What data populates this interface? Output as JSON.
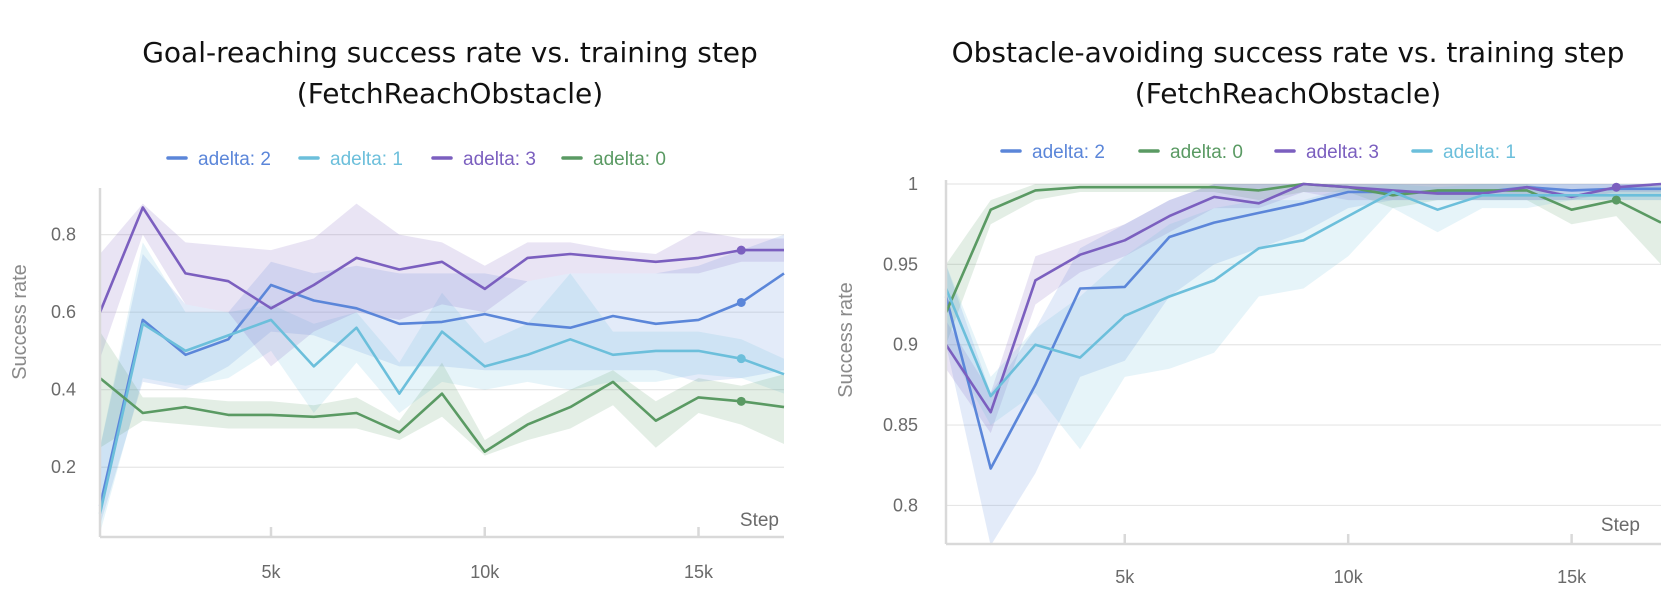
{
  "chart_data": [
    {
      "type": "line",
      "title": "Goal-reaching success rate vs. training step",
      "subtitle": "(FetchReachObstacle)",
      "xlabel": "Step",
      "ylabel": "Success rate",
      "xlim": [
        1000,
        17000
      ],
      "ylim": [
        0.02,
        0.91
      ],
      "xticks": [
        5000,
        10000,
        15000
      ],
      "xtick_labels": [
        "5k",
        "10k",
        "15k"
      ],
      "yticks": [
        0.2,
        0.4,
        0.6,
        0.8
      ],
      "ytick_labels": [
        "0.2",
        "0.4",
        "0.6",
        "0.8"
      ],
      "grid": true,
      "legend_position": "top",
      "x": [
        1000,
        2000,
        3000,
        4000,
        5000,
        6000,
        7000,
        8000,
        9000,
        10000,
        11000,
        12000,
        13000,
        14000,
        15000,
        16000,
        17000
      ],
      "series": [
        {
          "name": "adelta: 2",
          "color": "#5b86d9",
          "values": [
            0.1,
            0.58,
            0.49,
            0.53,
            0.67,
            0.63,
            0.61,
            0.57,
            0.575,
            0.595,
            0.57,
            0.56,
            0.59,
            0.57,
            0.58,
            0.625,
            0.7
          ],
          "lower": [
            0.05,
            0.42,
            0.4,
            0.46,
            0.55,
            0.54,
            0.5,
            0.46,
            0.46,
            0.45,
            0.45,
            0.45,
            0.45,
            0.45,
            0.42,
            0.43,
            0.45
          ],
          "upper": [
            0.25,
            0.75,
            0.62,
            0.6,
            0.73,
            0.7,
            0.72,
            0.7,
            0.7,
            0.7,
            0.68,
            0.7,
            0.7,
            0.7,
            0.72,
            0.76,
            0.8
          ],
          "end_marker_x": 16000
        },
        {
          "name": "adelta: 1",
          "color": "#6cbfdb",
          "values": [
            0.08,
            0.57,
            0.5,
            0.54,
            0.58,
            0.46,
            0.56,
            0.39,
            0.55,
            0.46,
            0.49,
            0.53,
            0.49,
            0.5,
            0.5,
            0.48,
            0.44
          ],
          "lower": [
            0.03,
            0.43,
            0.41,
            0.43,
            0.5,
            0.34,
            0.47,
            0.34,
            0.42,
            0.4,
            0.42,
            0.4,
            0.42,
            0.42,
            0.44,
            0.43,
            0.39
          ],
          "upper": [
            0.25,
            0.78,
            0.6,
            0.6,
            0.62,
            0.57,
            0.6,
            0.47,
            0.65,
            0.52,
            0.57,
            0.7,
            0.55,
            0.55,
            0.55,
            0.53,
            0.48
          ],
          "end_marker_x": 16000
        },
        {
          "name": "adelta: 3",
          "color": "#7b5fbf",
          "values": [
            0.6,
            0.87,
            0.7,
            0.68,
            0.61,
            0.67,
            0.74,
            0.71,
            0.73,
            0.66,
            0.74,
            0.75,
            0.74,
            0.73,
            0.74,
            0.76,
            0.76
          ],
          "lower": [
            0.48,
            0.8,
            0.62,
            0.6,
            0.46,
            0.55,
            0.6,
            0.58,
            0.62,
            0.6,
            0.68,
            0.7,
            0.7,
            0.7,
            0.7,
            0.73,
            0.73
          ],
          "upper": [
            0.75,
            0.88,
            0.78,
            0.77,
            0.76,
            0.79,
            0.88,
            0.8,
            0.78,
            0.72,
            0.78,
            0.78,
            0.76,
            0.75,
            0.81,
            0.79,
            0.79
          ],
          "end_marker_x": 16000
        },
        {
          "name": "adelta: 0",
          "color": "#5a9a63",
          "values": [
            0.43,
            0.34,
            0.355,
            0.335,
            0.335,
            0.33,
            0.34,
            0.29,
            0.39,
            0.24,
            0.31,
            0.355,
            0.42,
            0.32,
            0.38,
            0.37,
            0.355
          ],
          "lower": [
            0.25,
            0.32,
            0.31,
            0.3,
            0.3,
            0.3,
            0.3,
            0.27,
            0.33,
            0.23,
            0.27,
            0.3,
            0.36,
            0.25,
            0.34,
            0.31,
            0.26
          ],
          "upper": [
            0.55,
            0.38,
            0.38,
            0.37,
            0.37,
            0.36,
            0.38,
            0.32,
            0.47,
            0.27,
            0.34,
            0.4,
            0.45,
            0.37,
            0.43,
            0.41,
            0.44
          ],
          "end_marker_x": 16000
        }
      ]
    },
    {
      "type": "line",
      "title": "Obstacle-avoiding success rate vs. training step",
      "subtitle": "(FetchReachObstacle)",
      "xlabel": "Step",
      "ylabel": "Success rate",
      "xlim": [
        1000,
        17000
      ],
      "ylim": [
        0.776,
        1.0
      ],
      "xticks": [
        5000,
        10000,
        15000
      ],
      "xtick_labels": [
        "5k",
        "10k",
        "15k"
      ],
      "yticks": [
        0.8,
        0.85,
        0.9,
        0.95,
        1.0
      ],
      "ytick_labels": [
        "0.8",
        "0.85",
        "0.9",
        "0.95",
        "1"
      ],
      "grid": true,
      "legend_position": "top",
      "x": [
        1000,
        2000,
        3000,
        4000,
        5000,
        6000,
        7000,
        8000,
        9000,
        10000,
        11000,
        12000,
        13000,
        14000,
        15000,
        16000,
        17000
      ],
      "series": [
        {
          "name": "adelta: 2",
          "color": "#5b86d9",
          "values": [
            0.93,
            0.823,
            0.875,
            0.935,
            0.936,
            0.967,
            0.976,
            0.982,
            0.988,
            0.995,
            0.995,
            0.995,
            0.995,
            0.998,
            0.996,
            0.997,
            0.997
          ],
          "lower": [
            0.9,
            0.775,
            0.82,
            0.88,
            0.89,
            0.93,
            0.95,
            0.96,
            0.97,
            0.985,
            0.99,
            0.99,
            0.99,
            0.99,
            0.99,
            0.99,
            0.99
          ],
          "upper": [
            0.95,
            0.87,
            0.91,
            0.96,
            0.975,
            0.99,
            1.0,
            1.0,
            1.0,
            1.0,
            1.0,
            1.0,
            1.0,
            1.0,
            1.0,
            1.0,
            1.0
          ],
          "end_marker_x": null
        },
        {
          "name": "adelta: 0",
          "color": "#5a9a63",
          "values": [
            0.92,
            0.984,
            0.996,
            0.998,
            0.998,
            0.998,
            0.998,
            0.996,
            1.0,
            0.998,
            0.993,
            0.996,
            0.996,
            0.996,
            0.984,
            0.99,
            0.976
          ],
          "lower": [
            0.9,
            0.975,
            0.99,
            0.995,
            0.995,
            0.995,
            0.995,
            0.99,
            0.995,
            0.995,
            0.985,
            0.99,
            0.99,
            0.99,
            0.975,
            0.98,
            0.95
          ],
          "upper": [
            0.95,
            0.99,
            1.0,
            1.0,
            1.0,
            1.0,
            1.0,
            1.0,
            1.0,
            1.0,
            1.0,
            1.0,
            1.0,
            1.0,
            0.993,
            0.998,
            0.999
          ],
          "end_marker_x": 16000
        },
        {
          "name": "adelta: 3",
          "color": "#7b5fbf",
          "values": [
            0.9,
            0.858,
            0.94,
            0.956,
            0.965,
            0.98,
            0.992,
            0.988,
            1.0,
            0.998,
            0.996,
            0.994,
            0.994,
            0.998,
            0.992,
            0.998,
            1.0
          ],
          "lower": [
            0.885,
            0.845,
            0.925,
            0.945,
            0.955,
            0.97,
            0.985,
            0.985,
            0.995,
            0.99,
            0.99,
            0.99,
            0.99,
            0.99,
            0.99,
            0.995,
            0.995
          ],
          "upper": [
            0.915,
            0.87,
            0.955,
            0.965,
            0.975,
            0.99,
            1.0,
            1.0,
            1.0,
            1.0,
            1.0,
            1.0,
            1.0,
            1.0,
            1.0,
            1.0,
            1.0
          ],
          "end_marker_x": 16000
        },
        {
          "name": "adelta: 1",
          "color": "#6cbfdb",
          "values": [
            0.935,
            0.868,
            0.9,
            0.892,
            0.918,
            0.93,
            0.94,
            0.96,
            0.965,
            0.98,
            0.995,
            0.984,
            0.993,
            0.993,
            0.993,
            0.993,
            0.993
          ],
          "lower": [
            0.9,
            0.85,
            0.87,
            0.835,
            0.88,
            0.885,
            0.895,
            0.93,
            0.935,
            0.955,
            0.985,
            0.97,
            0.985,
            0.985,
            0.99,
            0.99,
            0.99
          ],
          "upper": [
            0.95,
            0.88,
            0.91,
            0.93,
            0.955,
            0.975,
            0.985,
            0.99,
            0.99,
            0.998,
            1.0,
            0.998,
            1.0,
            1.0,
            1.0,
            1.0,
            1.0
          ],
          "end_marker_x": null
        }
      ]
    }
  ]
}
